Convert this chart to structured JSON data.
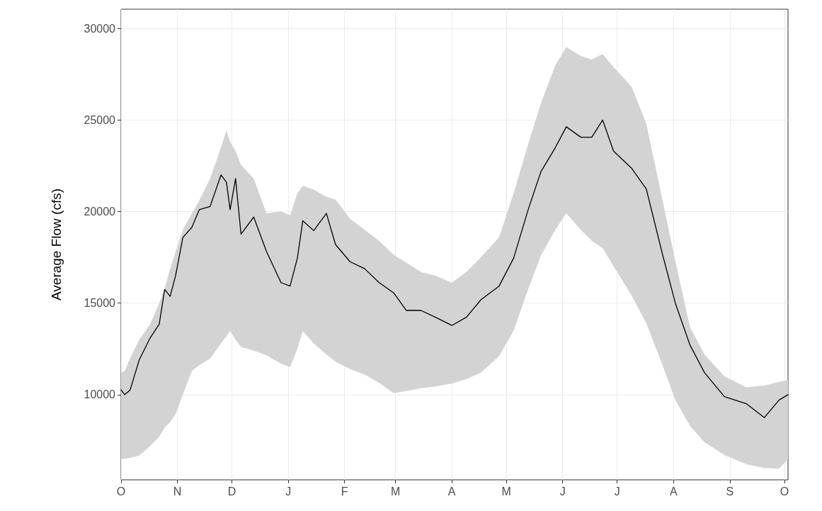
{
  "chart_data": {
    "type": "line",
    "ylabel": "Average Flow (cfs)",
    "ylim": [
      5350,
      31050
    ],
    "categories": [
      "O",
      null,
      null,
      null,
      null,
      null,
      null,
      null,
      null,
      null,
      null,
      null,
      null,
      null,
      null,
      null,
      null,
      null,
      null,
      null,
      null,
      null,
      null,
      null,
      null,
      null,
      null,
      null,
      null,
      null,
      null,
      "N",
      null,
      null,
      null,
      null,
      null,
      null,
      null,
      null,
      null,
      null,
      null,
      null,
      null,
      null,
      null,
      null,
      null,
      null,
      null,
      null,
      null,
      null,
      null,
      null,
      null,
      null,
      null,
      null,
      null,
      "D",
      null,
      null,
      null,
      null,
      null,
      null,
      null,
      null,
      null,
      null,
      null,
      null,
      null,
      null,
      null,
      null,
      null,
      null,
      null,
      null,
      null,
      null,
      null,
      null,
      null,
      null,
      null,
      null,
      null,
      null,
      "J",
      null,
      null,
      null,
      null,
      null,
      null,
      null,
      null,
      null,
      null,
      null,
      null,
      null,
      null,
      null,
      null,
      null,
      null,
      null,
      null,
      null,
      null,
      null,
      null,
      null,
      null,
      null,
      null,
      null,
      null,
      "F",
      null,
      null,
      null,
      null,
      null,
      null,
      null,
      null,
      null,
      null,
      null,
      null,
      null,
      null,
      null,
      null,
      null,
      null,
      null,
      null,
      null,
      null,
      null,
      null,
      null,
      null,
      null,
      "M",
      null,
      null,
      null,
      null,
      null,
      null,
      null,
      null,
      null,
      null,
      null,
      null,
      null,
      null,
      null,
      null,
      null,
      null,
      null,
      null,
      null,
      null,
      null,
      null,
      null,
      null,
      null,
      null,
      null,
      null,
      "A",
      null,
      null,
      null,
      null,
      null,
      null,
      null,
      null,
      null,
      null,
      null,
      null,
      null,
      null,
      null,
      null,
      null,
      null,
      null,
      null,
      null,
      null,
      null,
      null,
      null,
      null,
      null,
      null,
      null,
      "M",
      null,
      null,
      null,
      null,
      null,
      null,
      null,
      null,
      null,
      null,
      null,
      null,
      null,
      null,
      null,
      null,
      null,
      null,
      null,
      null,
      null,
      null,
      null,
      null,
      null,
      null,
      null,
      null,
      null,
      null,
      "J",
      null,
      null,
      null,
      null,
      null,
      null,
      null,
      null,
      null,
      null,
      null,
      null,
      null,
      null,
      null,
      null,
      null,
      null,
      null,
      null,
      null,
      null,
      null,
      null,
      null,
      null,
      null,
      null,
      null,
      "J",
      null,
      null,
      null,
      null,
      null,
      null,
      null,
      null,
      null,
      null,
      null,
      null,
      null,
      null,
      null,
      null,
      null,
      null,
      null,
      null,
      null,
      null,
      null,
      null,
      null,
      null,
      null,
      null,
      null,
      null,
      "A",
      null,
      null,
      null,
      null,
      null,
      null,
      null,
      null,
      null,
      null,
      null,
      null,
      null,
      null,
      null,
      null,
      null,
      null,
      null,
      null,
      null,
      null,
      null,
      null,
      null,
      null,
      null,
      null,
      null,
      null,
      "S",
      null,
      null,
      null,
      null,
      null,
      null,
      null,
      null,
      null,
      null,
      null,
      null,
      null,
      null,
      null,
      null,
      null,
      null,
      null,
      null,
      null,
      null,
      null,
      null,
      null,
      null,
      null,
      null,
      null,
      "O",
      null,
      null
    ],
    "yticks": [
      10000,
      15000,
      20000,
      25000,
      30000
    ],
    "grid": true,
    "marker": "none",
    "line_style": "solid",
    "series": [
      {
        "color": "#000000",
        "values": [
          10260,
          null,
          10000,
          null,
          null,
          10260,
          null,
          null,
          null,
          null,
          11900,
          null,
          null,
          null,
          null,
          null,
          13100,
          null,
          null,
          null,
          null,
          13850,
          null,
          null,
          15750,
          null,
          null,
          15370,
          null,
          null,
          16500,
          null,
          null,
          null,
          18580,
          null,
          null,
          null,
          null,
          19150,
          null,
          null,
          null,
          20100,
          null,
          null,
          null,
          null,
          null,
          20280,
          null,
          null,
          null,
          null,
          null,
          22000,
          null,
          null,
          21600,
          null,
          20100,
          null,
          null,
          21800,
          null,
          null,
          18770,
          null,
          null,
          null,
          null,
          null,
          null,
          19700,
          null,
          null,
          null,
          null,
          null,
          null,
          17820,
          null,
          null,
          null,
          null,
          null,
          null,
          null,
          16120,
          null,
          null,
          null,
          null,
          15930,
          null,
          null,
          null,
          17450,
          null,
          null,
          19500,
          null,
          null,
          null,
          null,
          null,
          18960,
          null,
          null,
          null,
          null,
          null,
          null,
          19900,
          null,
          null,
          null,
          null,
          18200,
          null,
          null,
          null,
          null,
          null,
          null,
          null,
          17260,
          null,
          null,
          null,
          null,
          null,
          null,
          null,
          16880,
          null,
          null,
          null,
          null,
          null,
          null,
          null,
          16120,
          null,
          null,
          null,
          null,
          null,
          null,
          null,
          15560,
          null,
          null,
          null,
          null,
          null,
          null,
          14600,
          null,
          null,
          null,
          null,
          null,
          null,
          null,
          14600,
          null,
          null,
          null,
          null,
          null,
          null,
          null,
          14230,
          null,
          null,
          null,
          null,
          null,
          null,
          null,
          null,
          13780,
          null,
          null,
          null,
          null,
          null,
          null,
          null,
          14230,
          null,
          null,
          null,
          null,
          null,
          null,
          null,
          15180,
          null,
          null,
          null,
          null,
          null,
          null,
          null,
          null,
          null,
          15930,
          null,
          null,
          null,
          null,
          null,
          null,
          null,
          17450,
          null,
          null,
          null,
          null,
          null,
          null,
          null,
          20100,
          null,
          null,
          null,
          null,
          null,
          null,
          22170,
          null,
          null,
          null,
          null,
          null,
          null,
          null,
          23500,
          null,
          null,
          null,
          null,
          null,
          24630,
          null,
          null,
          null,
          null,
          null,
          null,
          null,
          24060,
          null,
          null,
          null,
          null,
          null,
          24060,
          null,
          null,
          null,
          null,
          null,
          25000,
          null,
          null,
          null,
          null,
          null,
          23300,
          null,
          null,
          null,
          null,
          null,
          null,
          null,
          null,
          null,
          22360,
          null,
          null,
          null,
          null,
          null,
          null,
          null,
          21230,
          null,
          null,
          null,
          null,
          null,
          null,
          null,
          null,
          17640,
          null,
          null,
          null,
          null,
          null,
          null,
          15000,
          null,
          null,
          null,
          null,
          null,
          null,
          null,
          12720,
          null,
          null,
          null,
          null,
          null,
          null,
          null,
          11210,
          null,
          null,
          null,
          null,
          null,
          null,
          null,
          null,
          null,
          null,
          9890,
          null,
          null,
          null,
          null,
          null,
          null,
          null,
          null,
          null,
          null,
          null,
          9510,
          null,
          null,
          null,
          null,
          null,
          null,
          null,
          null,
          null,
          8750,
          null,
          null,
          null,
          null,
          null,
          null,
          null,
          9700,
          null,
          null,
          null,
          null,
          10000
        ],
        "lower": [
          6480,
          null,
          6500,
          null,
          null,
          6550,
          null,
          null,
          null,
          null,
          6670,
          null,
          null,
          null,
          null,
          null,
          7200,
          null,
          null,
          null,
          null,
          7700,
          null,
          null,
          8200,
          null,
          null,
          8500,
          null,
          null,
          8940,
          null,
          null,
          null,
          10000,
          null,
          null,
          null,
          null,
          11300,
          null,
          null,
          null,
          11600,
          null,
          null,
          null,
          null,
          null,
          11970,
          null,
          null,
          null,
          null,
          null,
          12800,
          null,
          null,
          13200,
          null,
          13480,
          null,
          null,
          13000,
          null,
          null,
          12600,
          null,
          null,
          null,
          null,
          null,
          null,
          12400,
          null,
          null,
          null,
          null,
          null,
          null,
          12150,
          null,
          null,
          null,
          null,
          null,
          null,
          null,
          11700,
          null,
          null,
          null,
          null,
          11500,
          null,
          null,
          null,
          12500,
          null,
          null,
          13480,
          null,
          null,
          null,
          null,
          null,
          12800,
          null,
          null,
          null,
          null,
          null,
          null,
          12200,
          null,
          null,
          null,
          null,
          11800,
          null,
          null,
          null,
          null,
          null,
          null,
          null,
          11400,
          null,
          null,
          null,
          null,
          null,
          null,
          null,
          11100,
          null,
          null,
          null,
          null,
          null,
          null,
          null,
          10640,
          null,
          null,
          null,
          null,
          null,
          null,
          null,
          10080,
          null,
          null,
          null,
          null,
          null,
          null,
          10200,
          null,
          null,
          null,
          null,
          null,
          null,
          null,
          10350,
          null,
          null,
          null,
          null,
          null,
          null,
          null,
          10450,
          null,
          null,
          null,
          null,
          null,
          null,
          null,
          null,
          10600,
          null,
          null,
          null,
          null,
          null,
          null,
          null,
          10850,
          null,
          null,
          null,
          null,
          null,
          null,
          null,
          11200,
          null,
          null,
          null,
          null,
          null,
          null,
          null,
          null,
          null,
          12100,
          null,
          null,
          null,
          null,
          null,
          null,
          null,
          13500,
          null,
          null,
          null,
          null,
          null,
          null,
          null,
          15750,
          null,
          null,
          null,
          null,
          null,
          null,
          17600,
          null,
          null,
          null,
          null,
          null,
          null,
          null,
          19000,
          null,
          null,
          null,
          null,
          null,
          19900,
          null,
          null,
          null,
          null,
          null,
          null,
          null,
          19000,
          null,
          null,
          null,
          null,
          null,
          18400,
          null,
          null,
          null,
          null,
          null,
          18010,
          null,
          null,
          null,
          null,
          null,
          17000,
          null,
          null,
          null,
          null,
          null,
          null,
          null,
          null,
          null,
          15400,
          null,
          null,
          null,
          null,
          null,
          null,
          null,
          13900,
          null,
          null,
          null,
          null,
          null,
          null,
          null,
          null,
          11600,
          null,
          null,
          null,
          null,
          null,
          null,
          9700,
          null,
          null,
          null,
          null,
          null,
          null,
          null,
          8300,
          null,
          null,
          null,
          null,
          null,
          null,
          null,
          7400,
          null,
          null,
          null,
          null,
          null,
          null,
          null,
          null,
          null,
          null,
          6700,
          null,
          null,
          null,
          null,
          null,
          null,
          null,
          null,
          null,
          null,
          null,
          6200,
          null,
          null,
          null,
          null,
          null,
          null,
          null,
          null,
          null,
          6000,
          null,
          null,
          null,
          null,
          null,
          null,
          null,
          5950,
          null,
          null,
          null,
          null,
          6480
        ],
        "upper": [
          11200,
          null,
          11300,
          null,
          null,
          12000,
          null,
          null,
          null,
          null,
          13000,
          null,
          null,
          null,
          null,
          null,
          13850,
          null,
          null,
          null,
          null,
          15000,
          null,
          null,
          15800,
          null,
          null,
          16880,
          null,
          null,
          17800,
          null,
          null,
          null,
          19000,
          null,
          null,
          null,
          null,
          19900,
          null,
          null,
          null,
          20600,
          null,
          null,
          null,
          null,
          null,
          21800,
          null,
          null,
          null,
          null,
          null,
          23500,
          null,
          null,
          24440,
          null,
          23800,
          null,
          null,
          23300,
          null,
          null,
          22550,
          null,
          null,
          null,
          null,
          null,
          null,
          21800,
          null,
          null,
          null,
          null,
          null,
          null,
          19900,
          null,
          null,
          null,
          null,
          null,
          null,
          null,
          20000,
          null,
          null,
          null,
          null,
          19800,
          null,
          null,
          null,
          21000,
          null,
          null,
          21400,
          null,
          null,
          null,
          null,
          null,
          21200,
          null,
          null,
          null,
          null,
          null,
          null,
          20800,
          null,
          null,
          null,
          null,
          20660,
          null,
          null,
          null,
          null,
          null,
          null,
          null,
          19600,
          null,
          null,
          null,
          null,
          null,
          null,
          null,
          19000,
          null,
          null,
          null,
          null,
          null,
          null,
          null,
          18400,
          null,
          null,
          null,
          null,
          null,
          null,
          null,
          17640,
          null,
          null,
          null,
          null,
          null,
          null,
          17200,
          null,
          null,
          null,
          null,
          null,
          null,
          null,
          16700,
          null,
          null,
          null,
          null,
          null,
          null,
          null,
          16500,
          null,
          null,
          null,
          null,
          null,
          null,
          null,
          null,
          16120,
          null,
          null,
          null,
          null,
          null,
          null,
          null,
          16700,
          null,
          null,
          null,
          null,
          null,
          null,
          null,
          17500,
          null,
          null,
          null,
          null,
          null,
          null,
          null,
          null,
          null,
          18600,
          null,
          null,
          null,
          null,
          null,
          null,
          null,
          21000,
          null,
          null,
          null,
          null,
          null,
          null,
          null,
          23680,
          null,
          null,
          null,
          null,
          null,
          null,
          25900,
          null,
          null,
          null,
          null,
          null,
          null,
          null,
          28000,
          null,
          null,
          null,
          null,
          null,
          28980,
          null,
          null,
          null,
          null,
          null,
          null,
          null,
          28500,
          null,
          null,
          null,
          null,
          null,
          28300,
          null,
          null,
          null,
          null,
          null,
          28600,
          null,
          null,
          null,
          null,
          null,
          27900,
          null,
          null,
          null,
          null,
          null,
          null,
          null,
          null,
          null,
          26800,
          null,
          null,
          null,
          null,
          null,
          null,
          null,
          24800,
          null,
          null,
          null,
          null,
          null,
          null,
          null,
          null,
          20600,
          null,
          null,
          null,
          null,
          null,
          null,
          17300,
          null,
          null,
          null,
          null,
          null,
          null,
          null,
          13700,
          null,
          null,
          null,
          null,
          null,
          null,
          null,
          12200,
          null,
          null,
          null,
          null,
          null,
          null,
          null,
          null,
          null,
          null,
          11000,
          null,
          null,
          null,
          null,
          null,
          null,
          null,
          null,
          null,
          null,
          null,
          10400,
          null,
          null,
          null,
          null,
          null,
          null,
          null,
          null,
          null,
          10500,
          null,
          null,
          null,
          null,
          null,
          null,
          null,
          10700,
          null,
          null,
          null,
          null,
          10800
        ]
      }
    ]
  }
}
